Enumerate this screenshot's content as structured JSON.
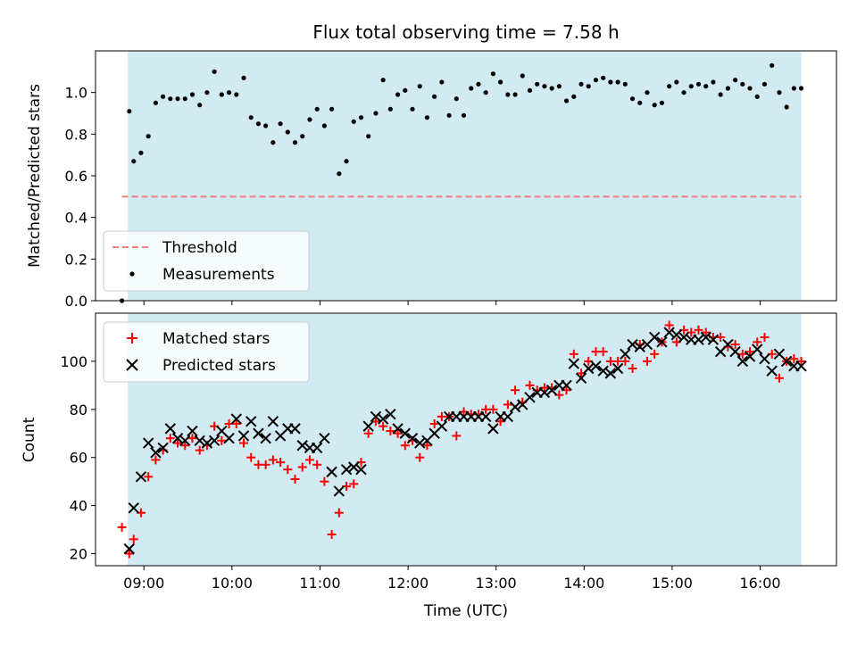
{
  "colors": {
    "band": "#add8e6",
    "threshold": "#f08080",
    "matched": "#ff0000",
    "predicted": "#000000",
    "measure": "#000000"
  },
  "chart_data": [
    {
      "type": "scatter",
      "title": "Flux total observing time = 7.58 h",
      "xlabel": "",
      "ylabel": "Matched/Predicted stars",
      "xlim": [
        "08:27",
        "16:52"
      ],
      "ylim": [
        0,
        1.2
      ],
      "yticks": [
        "0.0",
        "0.2",
        "0.4",
        "0.6",
        "0.8",
        "1.0"
      ],
      "observing_window": [
        "08:49",
        "16:28"
      ],
      "threshold": {
        "value": 0.5,
        "from": "08:45",
        "to": "16:28"
      },
      "legend": {
        "placement": "lower-left",
        "entries": [
          "Threshold",
          "Measurements"
        ]
      },
      "series": [
        {
          "name": "Measurements",
          "x": [
            "08:45",
            "08:50",
            "08:53",
            "08:58",
            "09:03",
            "09:08",
            "09:13",
            "09:18",
            "09:23",
            "09:28",
            "09:33",
            "09:38",
            "09:43",
            "09:48",
            "09:53",
            "09:58",
            "10:03",
            "10:08",
            "10:13",
            "10:18",
            "10:23",
            "10:28",
            "10:33",
            "10:38",
            "10:43",
            "10:48",
            "10:53",
            "10:58",
            "11:03",
            "11:08",
            "11:13",
            "11:18",
            "11:23",
            "11:28",
            "11:33",
            "11:38",
            "11:43",
            "11:48",
            "11:53",
            "11:58",
            "12:03",
            "12:08",
            "12:13",
            "12:18",
            "12:23",
            "12:28",
            "12:33",
            "12:38",
            "12:43",
            "12:48",
            "12:53",
            "12:58",
            "13:03",
            "13:08",
            "13:13",
            "13:18",
            "13:23",
            "13:28",
            "13:33",
            "13:38",
            "13:43",
            "13:48",
            "13:53",
            "13:58",
            "14:03",
            "14:08",
            "14:13",
            "14:18",
            "14:23",
            "14:28",
            "14:33",
            "14:38",
            "14:43",
            "14:48",
            "14:53",
            "14:58",
            "15:03",
            "15:08",
            "15:13",
            "15:18",
            "15:23",
            "15:28",
            "15:33",
            "15:38",
            "15:43",
            "15:48",
            "15:53",
            "15:58",
            "16:03",
            "16:08",
            "16:13",
            "16:18",
            "16:23",
            "16:28"
          ],
          "y": [
            0.0,
            0.91,
            0.67,
            0.71,
            0.79,
            0.95,
            0.98,
            0.97,
            0.97,
            0.97,
            0.99,
            0.94,
            1.0,
            1.1,
            0.99,
            1.0,
            0.99,
            1.07,
            0.88,
            0.85,
            0.84,
            0.76,
            0.85,
            0.81,
            0.76,
            0.79,
            0.87,
            0.92,
            0.84,
            0.92,
            0.61,
            0.67,
            0.86,
            0.88,
            0.79,
            0.9,
            1.06,
            0.92,
            0.99,
            1.01,
            0.92,
            1.03,
            0.88,
            0.98,
            1.05,
            0.89,
            0.97,
            0.89,
            1.02,
            1.04,
            1.0,
            1.09,
            1.05,
            0.99,
            0.99,
            1.08,
            1.01,
            1.04,
            1.03,
            1.02,
            1.03,
            0.96,
            0.98,
            1.04,
            1.03,
            1.06,
            1.07,
            1.05,
            1.05,
            1.04,
            0.97,
            0.95,
            1.0,
            0.94,
            0.95,
            1.03,
            1.05,
            1.0,
            1.03,
            1.04,
            1.03,
            1.05,
            0.99,
            1.02,
            1.06,
            1.04,
            1.02,
            0.98,
            1.04,
            1.13,
            1.0,
            0.93,
            1.02,
            1.02
          ]
        }
      ]
    },
    {
      "type": "scatter",
      "title": "",
      "xlabel": "Time (UTC)",
      "ylabel": "Count",
      "xlim": [
        "08:27",
        "16:52"
      ],
      "ylim": [
        15,
        120
      ],
      "yticks": [
        "20",
        "40",
        "60",
        "80",
        "100"
      ],
      "xticks": [
        "09:00",
        "10:00",
        "11:00",
        "12:00",
        "13:00",
        "14:00",
        "15:00",
        "16:00"
      ],
      "observing_window": [
        "08:49",
        "16:28"
      ],
      "legend": {
        "placement": "upper-left",
        "entries": [
          "Matched stars",
          "Predicted stars"
        ]
      },
      "series": [
        {
          "name": "Matched stars",
          "x": [
            "08:45",
            "08:50",
            "08:53",
            "08:58",
            "09:03",
            "09:08",
            "09:13",
            "09:18",
            "09:23",
            "09:28",
            "09:33",
            "09:38",
            "09:43",
            "09:48",
            "09:53",
            "09:58",
            "10:03",
            "10:08",
            "10:13",
            "10:18",
            "10:23",
            "10:28",
            "10:33",
            "10:38",
            "10:43",
            "10:48",
            "10:53",
            "10:58",
            "11:03",
            "11:08",
            "11:13",
            "11:18",
            "11:23",
            "11:28",
            "11:33",
            "11:38",
            "11:43",
            "11:48",
            "11:53",
            "11:58",
            "12:03",
            "12:08",
            "12:13",
            "12:18",
            "12:23",
            "12:28",
            "12:33",
            "12:38",
            "12:43",
            "12:48",
            "12:53",
            "12:58",
            "13:03",
            "13:08",
            "13:13",
            "13:18",
            "13:23",
            "13:28",
            "13:33",
            "13:38",
            "13:43",
            "13:48",
            "13:53",
            "13:58",
            "14:03",
            "14:08",
            "14:13",
            "14:18",
            "14:23",
            "14:28",
            "14:33",
            "14:38",
            "14:43",
            "14:48",
            "14:53",
            "14:58",
            "15:03",
            "15:08",
            "15:13",
            "15:18",
            "15:23",
            "15:28",
            "15:33",
            "15:38",
            "15:43",
            "15:48",
            "15:53",
            "15:58",
            "16:03",
            "16:08",
            "16:13",
            "16:18",
            "16:23",
            "16:28"
          ],
          "y": [
            31,
            20,
            26,
            37,
            52,
            59,
            63,
            68,
            66,
            65,
            68,
            63,
            65,
            73,
            67,
            74,
            74,
            66,
            60,
            57,
            57,
            59,
            58,
            55,
            51,
            56,
            59,
            57,
            50,
            28,
            37,
            48,
            49,
            58,
            70,
            75,
            73,
            71,
            70,
            65,
            67,
            60,
            65,
            74,
            77,
            77,
            69,
            79,
            78,
            78,
            80,
            80,
            75,
            82,
            88,
            83,
            90,
            88,
            89,
            89,
            86,
            88,
            103,
            95,
            100,
            104,
            104,
            100,
            100,
            100,
            97,
            107,
            100,
            103,
            108,
            115,
            108,
            113,
            112,
            113,
            112,
            110,
            110,
            106,
            107,
            103,
            104,
            108,
            110,
            103,
            93,
            100,
            101,
            100
          ],
          "shown_x_count": 94
        },
        {
          "name": "Predicted stars",
          "x": [
            "08:50",
            "08:53",
            "08:58",
            "09:03",
            "09:08",
            "09:13",
            "09:18",
            "09:23",
            "09:28",
            "09:33",
            "09:38",
            "09:43",
            "09:48",
            "09:53",
            "09:58",
            "10:03",
            "10:08",
            "10:13",
            "10:18",
            "10:23",
            "10:28",
            "10:33",
            "10:38",
            "10:43",
            "10:48",
            "10:53",
            "10:58",
            "11:03",
            "11:08",
            "11:13",
            "11:18",
            "11:23",
            "11:28",
            "11:33",
            "11:38",
            "11:43",
            "11:48",
            "11:53",
            "11:58",
            "12:03",
            "12:08",
            "12:13",
            "12:18",
            "12:23",
            "12:28",
            "12:33",
            "12:38",
            "12:43",
            "12:48",
            "12:53",
            "12:58",
            "13:03",
            "13:08",
            "13:13",
            "13:18",
            "13:23",
            "13:28",
            "13:33",
            "13:38",
            "13:43",
            "13:48",
            "13:53",
            "13:58",
            "14:03",
            "14:08",
            "14:13",
            "14:18",
            "14:23",
            "14:28",
            "14:33",
            "14:38",
            "14:43",
            "14:48",
            "14:53",
            "14:58",
            "15:03",
            "15:08",
            "15:13",
            "15:18",
            "15:23",
            "15:28",
            "15:33",
            "15:38",
            "15:43",
            "15:48",
            "15:53",
            "15:58",
            "16:03",
            "16:08",
            "16:13",
            "16:18",
            "16:23",
            "16:28"
          ],
          "y": [
            22,
            39,
            52,
            66,
            62,
            64,
            72,
            68,
            67,
            71,
            67,
            66,
            67,
            71,
            68,
            76,
            69,
            75,
            70,
            68,
            75,
            69,
            72,
            72,
            65,
            64,
            64,
            68,
            54,
            46,
            55,
            56,
            55,
            73,
            77,
            76,
            78,
            72,
            70,
            68,
            66,
            67,
            70,
            73,
            77,
            77,
            77,
            77,
            77,
            77,
            72,
            77,
            77,
            81,
            82,
            85,
            87,
            87,
            88,
            90,
            90,
            99,
            93,
            97,
            98,
            96,
            95,
            97,
            103,
            107,
            106,
            107,
            110,
            108,
            112,
            111,
            110,
            109,
            109,
            110,
            109,
            104,
            107,
            104,
            100,
            102,
            105,
            101,
            96,
            103,
            100,
            98,
            98
          ]
        }
      ]
    }
  ]
}
